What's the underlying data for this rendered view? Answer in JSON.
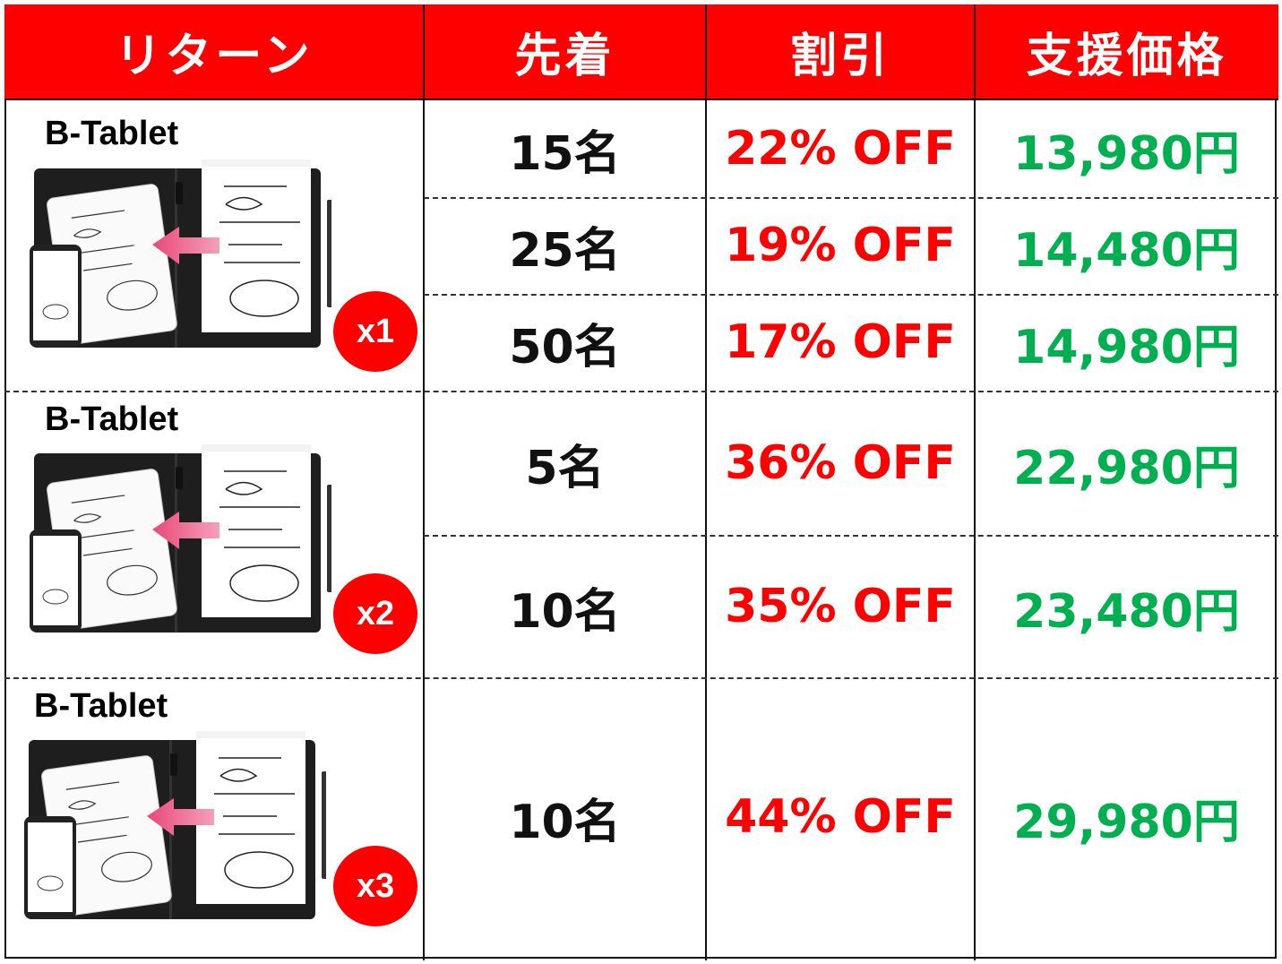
{
  "header": {
    "columns": [
      "リターン",
      "先着",
      "割引",
      "支援価格"
    ],
    "background_color": "#ff0000"
  },
  "colors": {
    "discount": "#ff0000",
    "price": "#00b050",
    "badge": "#ff0000"
  },
  "groups": [
    {
      "product": "B-Tablet",
      "quantity_badge": "x1",
      "rows": [
        {
          "limit": "15名",
          "discount": "22% OFF",
          "price": "13,980円"
        },
        {
          "limit": "25名",
          "discount": "19% OFF",
          "price": "14,480円"
        },
        {
          "limit": "50名",
          "discount": "17% OFF",
          "price": "14,980円"
        }
      ]
    },
    {
      "product": "B-Tablet",
      "quantity_badge": "x2",
      "rows": [
        {
          "limit": "5名",
          "discount": "36% OFF",
          "price": "22,980円"
        },
        {
          "limit": "10名",
          "discount": "35% OFF",
          "price": "23,480円"
        }
      ]
    },
    {
      "product": "B-Tablet",
      "quantity_badge": "x3",
      "rows": [
        {
          "limit": "10名",
          "discount": "44% OFF",
          "price": "29,980円"
        }
      ]
    }
  ]
}
